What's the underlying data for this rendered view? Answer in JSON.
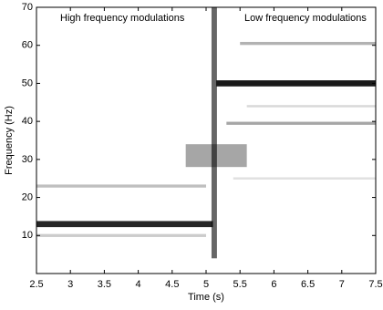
{
  "chart_data": {
    "type": "spectrogram",
    "xlabel": "Time (s)",
    "ylabel": "Frequency (Hz)",
    "annotations": [
      "High frequency modulations",
      "Low frequency modulations"
    ],
    "xlim": [
      2.5,
      7.5
    ],
    "xticks": [
      2.5,
      3,
      3.5,
      4,
      4.5,
      5,
      5.5,
      6,
      6.5,
      7,
      7.5
    ],
    "ylim": [
      0,
      70
    ],
    "yticks": [
      10,
      20,
      30,
      40,
      50,
      60,
      70
    ],
    "color": "#000000",
    "ridges": [
      {
        "x": [
          2.5,
          5.1
        ],
        "y": 13,
        "bandwidth": 1.6,
        "intensity": 0.85
      },
      {
        "x": [
          2.5,
          5.0
        ],
        "y": 10,
        "bandwidth": 0.8,
        "intensity": 0.2
      },
      {
        "x": [
          2.5,
          5.0
        ],
        "y": 23,
        "bandwidth": 0.8,
        "intensity": 0.25
      },
      {
        "x": [
          4.7,
          5.6
        ],
        "y": 31,
        "bandwidth": 6,
        "intensity": 0.35
      },
      {
        "x": [
          5.08,
          5.16
        ],
        "y": 37,
        "bandwidth": 66,
        "intensity": 0.6
      },
      {
        "x": [
          5.15,
          7.5
        ],
        "y": 50,
        "bandwidth": 1.6,
        "intensity": 0.9
      },
      {
        "x": [
          5.5,
          7.5
        ],
        "y": 60.5,
        "bandwidth": 0.8,
        "intensity": 0.3
      },
      {
        "x": [
          5.3,
          7.5
        ],
        "y": 39.5,
        "bandwidth": 0.8,
        "intensity": 0.35
      },
      {
        "x": [
          5.6,
          7.5
        ],
        "y": 44,
        "bandwidth": 0.6,
        "intensity": 0.15
      },
      {
        "x": [
          5.4,
          7.5
        ],
        "y": 25,
        "bandwidth": 0.6,
        "intensity": 0.12
      }
    ]
  }
}
